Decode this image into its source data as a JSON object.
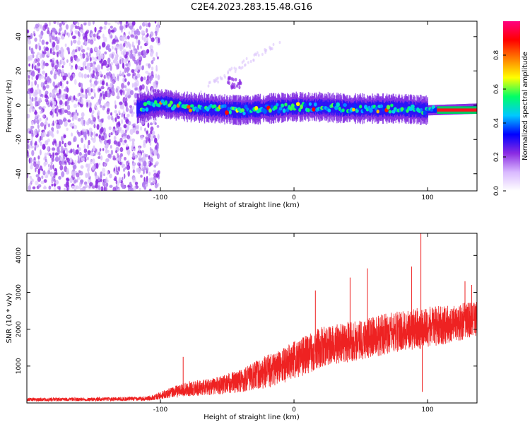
{
  "title": "C2E4.2023.283.15.48.G16",
  "chart_data": [
    {
      "type": "heatmap",
      "xlabel": "Height of straight line (km)",
      "ylabel": "Frequency (Hz)",
      "xlim": [
        -200,
        137
      ],
      "ylim": [
        -50,
        49
      ],
      "x_ticks": [
        -100,
        0,
        100
      ],
      "y_ticks": [
        -40,
        -20,
        0,
        20,
        40
      ],
      "colorbar": {
        "label": "Normalized spectral amplitude",
        "range": [
          0,
          1
        ],
        "ticks": [
          0.0,
          0.2,
          0.4,
          0.6,
          0.8
        ],
        "colormap": [
          "#ffffff",
          "#d9b8ff",
          "#8a2be2",
          "#0000ff",
          "#00c8ff",
          "#00ff66",
          "#ffff00",
          "#ff8000",
          "#ff0000",
          "#ff0080"
        ]
      },
      "features": {
        "noise_region_x": [
          -200,
          -105
        ],
        "signal_start_x": -118,
        "signal_center_hz": [
          {
            "x": -118,
            "y": -2
          },
          {
            "x": -100,
            "y": 1
          },
          {
            "x": -80,
            "y": -1
          },
          {
            "x": -60,
            "y": -2
          },
          {
            "x": -40,
            "y": -3
          },
          {
            "x": -20,
            "y": -2
          },
          {
            "x": 0,
            "y": -1
          },
          {
            "x": 20,
            "y": -1
          },
          {
            "x": 40,
            "y": -2
          },
          {
            "x": 60,
            "y": -2
          },
          {
            "x": 80,
            "y": -2
          },
          {
            "x": 100,
            "y": -3
          },
          {
            "x": 137,
            "y": -2
          }
        ],
        "strong_band_x": [
          107,
          137
        ]
      }
    },
    {
      "type": "line",
      "xlabel": "Height of straight line (km)",
      "ylabel": "SNR (10 * v/v)",
      "xlim": [
        -200,
        137
      ],
      "ylim": [
        0,
        4600
      ],
      "x_ticks": [
        -100,
        0,
        100
      ],
      "y_ticks": [
        1000,
        2000,
        3000,
        4000
      ],
      "color": "#ee2222",
      "envelope": [
        {
          "x": -200,
          "mean": 90,
          "spread": 45
        },
        {
          "x": -150,
          "mean": 100,
          "spread": 50
        },
        {
          "x": -110,
          "mean": 120,
          "spread": 60
        },
        {
          "x": -100,
          "mean": 200,
          "spread": 100
        },
        {
          "x": -90,
          "mean": 300,
          "spread": 150
        },
        {
          "x": -80,
          "mean": 380,
          "spread": 200
        },
        {
          "x": -60,
          "mean": 450,
          "spread": 230
        },
        {
          "x": -40,
          "mean": 600,
          "spread": 320
        },
        {
          "x": -20,
          "mean": 850,
          "spread": 450
        },
        {
          "x": 0,
          "mean": 1150,
          "spread": 520
        },
        {
          "x": 20,
          "mean": 1500,
          "spread": 550
        },
        {
          "x": 40,
          "mean": 1650,
          "spread": 550
        },
        {
          "x": 60,
          "mean": 1800,
          "spread": 560
        },
        {
          "x": 80,
          "mean": 1950,
          "spread": 560
        },
        {
          "x": 100,
          "mean": 2050,
          "spread": 560
        },
        {
          "x": 120,
          "mean": 2150,
          "spread": 500
        },
        {
          "x": 137,
          "mean": 2300,
          "spread": 500
        }
      ],
      "spikes": [
        {
          "x": -83,
          "y": 1250
        },
        {
          "x": 16,
          "y": 3050
        },
        {
          "x": 42,
          "y": 3400
        },
        {
          "x": 55,
          "y": 3650
        },
        {
          "x": 88,
          "y": 3700
        },
        {
          "x": 95,
          "y": 4600
        },
        {
          "x": 96,
          "y": 300
        },
        {
          "x": 128,
          "y": 3300
        },
        {
          "x": 133,
          "y": 3200
        }
      ]
    }
  ]
}
